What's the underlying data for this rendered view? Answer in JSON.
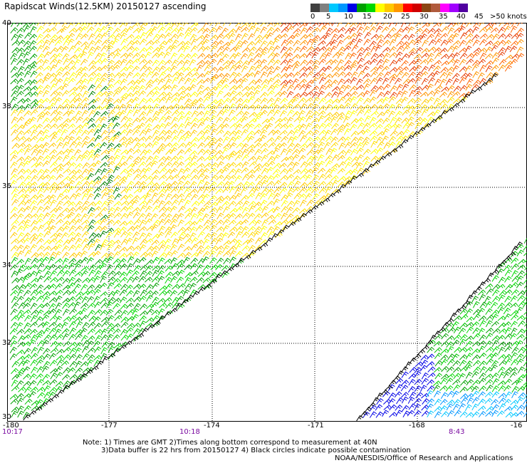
{
  "title": "Rapidscat Winds(12.5KM) 20150127 ascending",
  "colorbar": {
    "labels": [
      "0",
      "5",
      "10",
      "15",
      "20",
      "25",
      "30",
      "35",
      "40",
      "45",
      ">50 knots"
    ],
    "colors": [
      "#404040",
      "#808080",
      "#00c8ff",
      "#0096ff",
      "#0000e6",
      "#00a000",
      "#00d800",
      "#ffff00",
      "#ffc800",
      "#ff9600",
      "#ff0000",
      "#d00000",
      "#8b4513",
      "#b05a3c",
      "#ff00ff",
      "#a000ff",
      "#5000a0"
    ]
  },
  "map": {
    "lat_labels": [
      "40",
      "38",
      "36",
      "34",
      "32",
      "30"
    ],
    "lon_labels": [
      "-180",
      "-177",
      "-174",
      "-171",
      "-168",
      "-16"
    ],
    "time_labels": [
      "10:17",
      "10:18",
      "8:43"
    ]
  },
  "notes": {
    "line1": "Note: 1) Times are GMT 2)Times along bottom correspond to measurement at 40N",
    "line2": "3)Data buffer is 22 hrs from 20150127 4) Black circles indicate possible contamination"
  },
  "credit": "NOAA/NESDIS/Office of Research and Applications"
}
